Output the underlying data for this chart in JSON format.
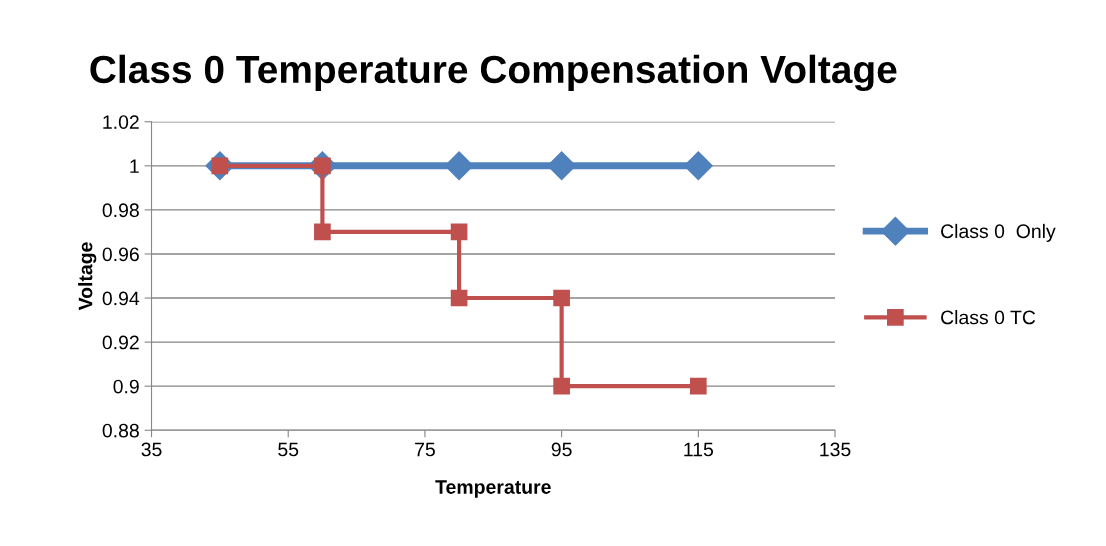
{
  "chart_data": {
    "type": "line",
    "title": "Class 0 Temperature Compensation Voltage",
    "xlabel": "Temperature",
    "ylabel": "Voltage",
    "series": [
      {
        "name": "Class 0  Only",
        "color": "#4f81bd",
        "marker": "diamond",
        "x": [
          45,
          60,
          80,
          95,
          115
        ],
        "values": [
          1,
          1,
          1,
          1,
          1
        ]
      },
      {
        "name": "Class 0 TC",
        "color": "#c0504d",
        "marker": "square",
        "x": [
          45,
          60,
          60,
          80,
          80,
          95,
          95,
          115
        ],
        "values": [
          1,
          1,
          0.97,
          0.97,
          0.94,
          0.94,
          0.9,
          0.9
        ]
      }
    ],
    "xlim": [
      35,
      135
    ],
    "xticks": [
      35,
      55,
      75,
      95,
      115,
      135
    ],
    "ylim": [
      0.88,
      1.02
    ],
    "yticks": [
      0.88,
      0.9,
      0.92,
      0.94,
      0.96,
      0.98,
      1,
      1.02
    ],
    "grid": "y",
    "legend": "right",
    "line_style": "solid"
  }
}
